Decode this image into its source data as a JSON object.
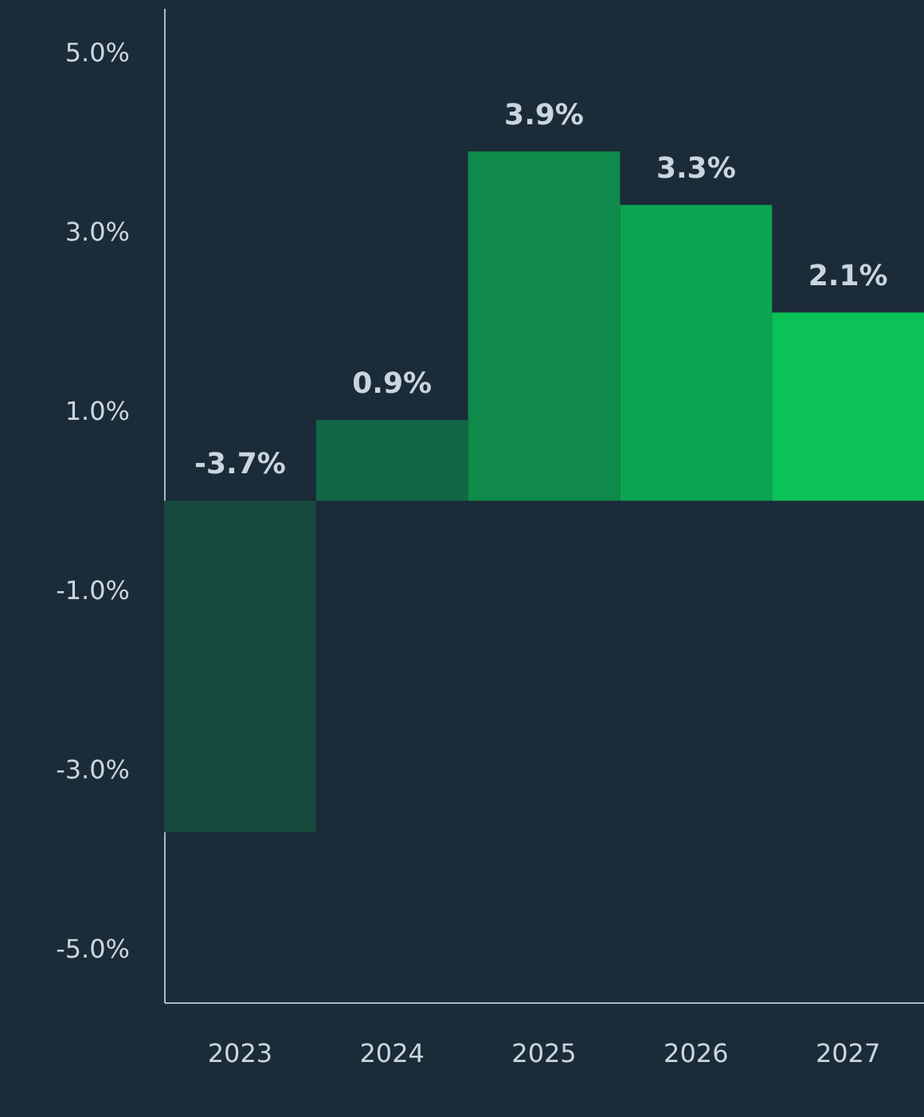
{
  "chart_data": {
    "type": "bar",
    "categories": [
      "2023",
      "2024",
      "2025",
      "2026",
      "2027"
    ],
    "values": [
      -3.7,
      0.9,
      3.9,
      3.3,
      2.1
    ],
    "colors": [
      "#174a3c",
      "#136646",
      "#0f8a4a",
      "#0da552",
      "#0bc257"
    ],
    "ylim": [
      -5.6,
      5.5
    ],
    "yticks": [
      {
        "value": 5,
        "label": "5.0%"
      },
      {
        "value": 3,
        "label": "3.0%"
      },
      {
        "value": 1,
        "label": "1.0%"
      },
      {
        "value": -1,
        "label": "-1.0%"
      },
      {
        "value": -3,
        "label": "-3.0%"
      },
      {
        "value": -5,
        "label": "-5.0%"
      }
    ],
    "value_labels": [
      "-3.7%",
      "0.9%",
      "3.9%",
      "3.3%",
      "2.1%"
    ],
    "grid": false
  }
}
